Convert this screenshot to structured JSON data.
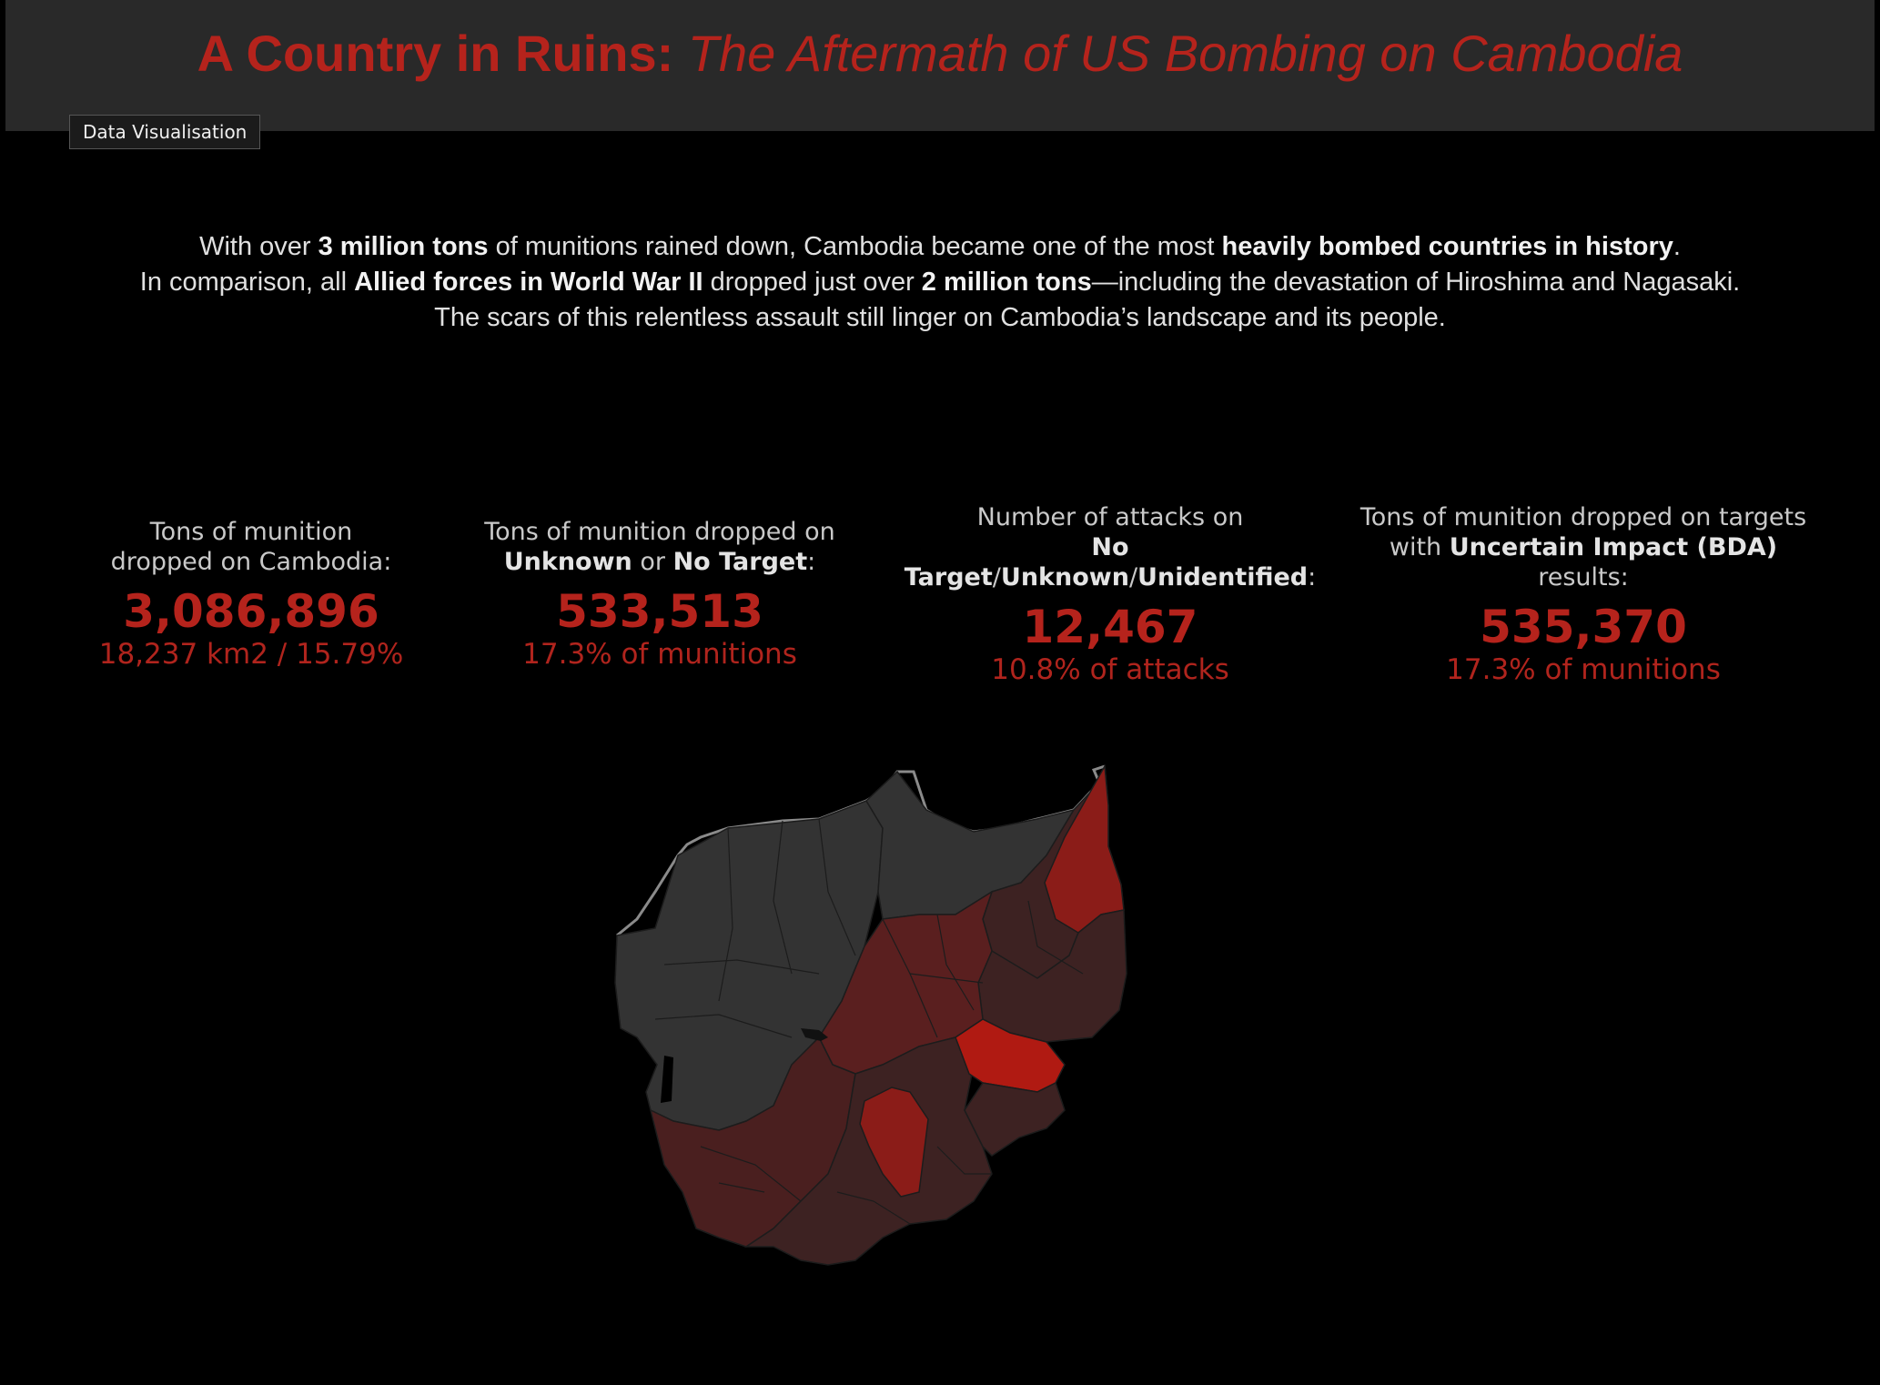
{
  "header": {
    "title_main": "A Country in Ruins:",
    "title_sub": "The Aftermath of US Bombing on Cambodia",
    "tag": "Data Visualisation"
  },
  "intro": {
    "l1a": "With over ",
    "l1b": "3 million tons",
    "l1c": " of munitions rained down, Cambodia became one of the most ",
    "l1d": "heavily bombed countries in history",
    "l1e": ".",
    "l2a": "In comparison, all ",
    "l2b": "Allied forces in World War II",
    "l2c": " dropped just over ",
    "l2d": "2 million tons",
    "l2e": "—including the devastation of Hiroshima and Nagasaki.",
    "l3": "The scars of this relentless assault still linger on Cambodia’s landscape and its people."
  },
  "kpis": {
    "total": {
      "l1": "Tons of munition",
      "l2": "dropped on Cambodia:",
      "value": "3,086,896",
      "sub": "18,237 km2 / 15.79%"
    },
    "unknown": {
      "l1": "Tons of munition dropped on",
      "b1": "Unknown",
      "or": " or ",
      "b2": "No Target",
      "colon": ":",
      "value": "533,513",
      "sub": "17.3% of munitions"
    },
    "attacks": {
      "l1": "Number of attacks on",
      "b1": "No",
      "b2": "Target",
      "s1": "/",
      "b3": "Unknown",
      "s2": "/",
      "b4": "Unidentified",
      "colon": ":",
      "value": "12,467",
      "sub": "10.8% of attacks"
    },
    "bda": {
      "l1": "Tons of munition dropped on targets",
      "l2a": "with ",
      "b1": "Uncertain Impact (BDA)",
      "l3": "results:",
      "value": "535,370",
      "sub": "17.3%  of munitions"
    }
  },
  "colors": {
    "accent": "#b5231c",
    "map_none": "#333333",
    "map_low": "#3d2222",
    "map_mid": "#5a1f1f",
    "map_high": "#8b1c18",
    "map_max": "#b01a12"
  },
  "map_icon": "cambodia-choropleth-map"
}
